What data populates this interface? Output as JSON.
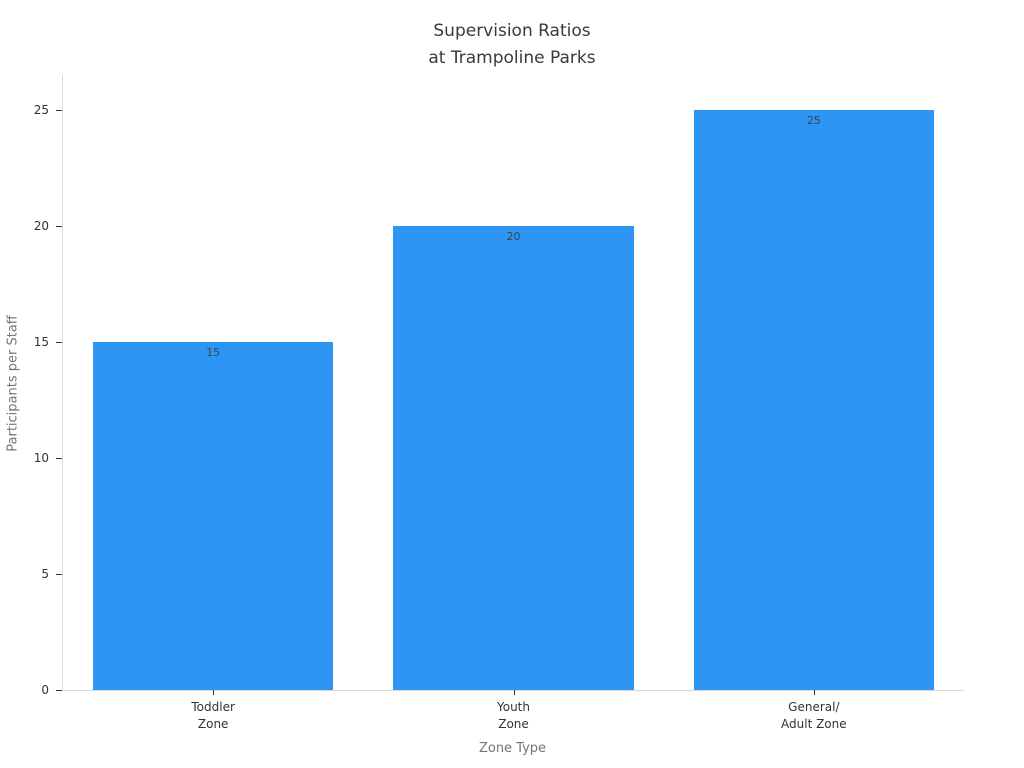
{
  "chart_data": {
    "type": "bar",
    "title": "Supervision Ratios\nat Trampoline Parks",
    "categories": [
      "Toddler\nZone",
      "Youth\nZone",
      "General/\nAdult Zone"
    ],
    "values": [
      15,
      20,
      25
    ],
    "bar_value_labels": [
      "15",
      "20",
      "25"
    ],
    "xlabel": "Zone Type",
    "ylabel": "Participants per Staff",
    "ylim": [
      0,
      26.5
    ],
    "yticks": [
      0,
      5,
      10,
      15,
      20,
      25
    ],
    "grid": false,
    "legend": null,
    "colors": {
      "bar_fill": "#2E95F5",
      "bar_value_label": "#37474f",
      "title_text": "#3a3a3a",
      "tick_text": "#333333",
      "axis_title_text": "#757575",
      "spine": "#d9d9d9"
    }
  }
}
